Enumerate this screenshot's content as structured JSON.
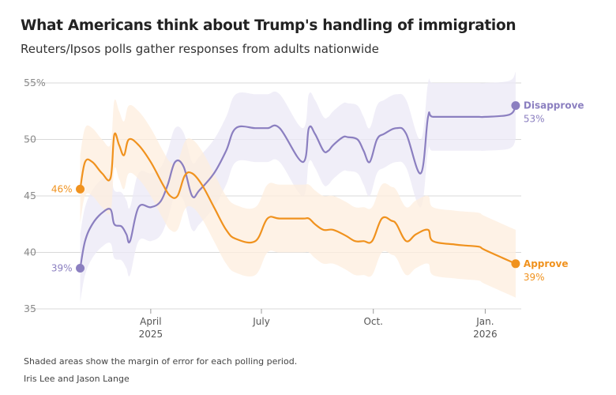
{
  "header": {
    "title": "What Americans think about Trump's handling of immigration",
    "subtitle": "Reuters/Ipsos polls gather responses from adults nationwide"
  },
  "footer": {
    "note": "Shaded areas show the margin of error for each polling period.",
    "byline": "Iris Lee and Jason Lange"
  },
  "colors": {
    "disapprove": "#8b7fc0",
    "disapprove_band": "#ebe8f5",
    "approve": "#f0921e",
    "approve_band": "#fdeedd",
    "grid": "#d9d9d9"
  },
  "chart_data": {
    "type": "line",
    "title": "What Americans think about Trump's handling of immigration",
    "subtitle": "Reuters/Ipsos polls gather responses from adults nationwide",
    "xlabel": "",
    "ylabel": "",
    "ylim": [
      35,
      55
    ],
    "yticks": [
      35,
      40,
      45,
      50,
      55
    ],
    "ytick_labels": [
      "35",
      "40",
      "45",
      "50",
      "55%"
    ],
    "grid": true,
    "x_unit": "days since 2025-01-01",
    "xlim": [
      31,
      392
    ],
    "xticks": [
      {
        "day": 90,
        "label": "April",
        "sublabel": "2025"
      },
      {
        "day": 181,
        "label": "July",
        "sublabel": ""
      },
      {
        "day": 273,
        "label": "Oct.",
        "sublabel": ""
      },
      {
        "day": 365,
        "label": "Jan.",
        "sublabel": "2026"
      }
    ],
    "series": [
      {
        "name": "Disapprove",
        "key": "disapprove",
        "end_label": "53%",
        "start_label": "39%",
        "margin": 3,
        "x": [
          32,
          36,
          42,
          50,
          57,
          60,
          66,
          70,
          73,
          80,
          90,
          98,
          104,
          110,
          117,
          124,
          130,
          142,
          152,
          160,
          176,
          186,
          196,
          215,
          220,
          225,
          232,
          236,
          240,
          248,
          252,
          260,
          265,
          270,
          276,
          282,
          292,
          300,
          312,
          318,
          322,
          342,
          350,
          360,
          365,
          385,
          390
        ],
        "values": [
          38.6,
          41,
          42.5,
          43.5,
          43.8,
          42.5,
          42.3,
          41.6,
          41,
          44,
          44,
          44.5,
          46,
          48,
          47.6,
          45,
          45.5,
          47,
          49,
          51,
          51,
          51,
          51,
          48,
          51,
          50.5,
          49,
          49,
          49.5,
          50.2,
          50.2,
          50,
          49,
          48,
          50,
          50.5,
          51,
          50.5,
          47,
          52,
          52,
          52,
          52,
          52,
          52,
          52.2,
          53
        ]
      },
      {
        "name": "Approve",
        "key": "approve",
        "end_label": "39%",
        "start_label": "46%",
        "margin": 3,
        "x": [
          32,
          36,
          42,
          50,
          57,
          60,
          64,
          68,
          72,
          80,
          90,
          100,
          106,
          112,
          118,
          124,
          132,
          142,
          152,
          160,
          176,
          186,
          196,
          215,
          220,
          225,
          232,
          240,
          250,
          258,
          265,
          272,
          280,
          288,
          292,
          300,
          308,
          318,
          322,
          340,
          350,
          360,
          365,
          390
        ],
        "values": [
          45.6,
          48,
          48,
          47,
          46.6,
          50.4,
          49.5,
          48.6,
          50,
          49.5,
          48,
          46,
          45,
          45,
          46.8,
          47,
          46,
          44,
          42,
          41.2,
          41,
          43,
          43,
          43,
          43,
          42.5,
          42,
          42,
          41.5,
          41,
          41,
          41,
          43,
          42.8,
          42.5,
          41,
          41.6,
          42,
          41,
          40.7,
          40.6,
          40.5,
          40.2,
          39
        ]
      }
    ]
  }
}
